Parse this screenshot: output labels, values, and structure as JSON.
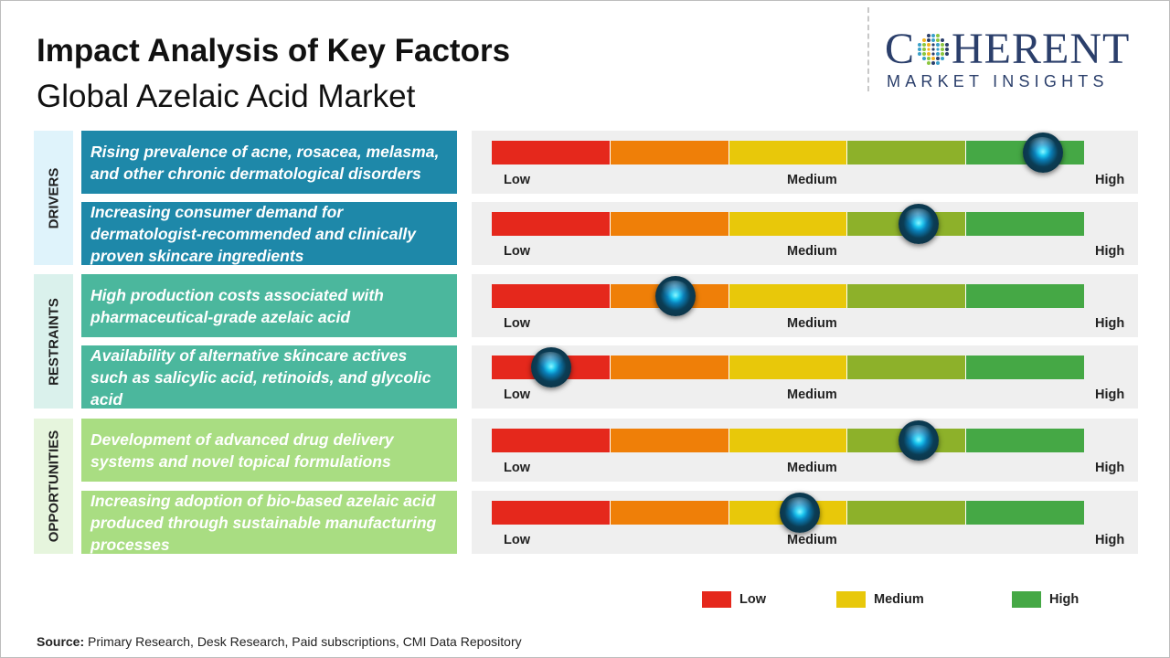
{
  "title": "Impact Analysis of Key Factors",
  "subtitle": "Global Azelaic Acid Market",
  "logo": {
    "main_pre": "C",
    "main_post": "HERENT",
    "sub": "MARKET INSIGHTS"
  },
  "colors": {
    "low": "#e5281c",
    "low_mid": "#ef7f08",
    "medium": "#e8c80a",
    "mid_high": "#8db12a",
    "high": "#45a845",
    "drivers_bg": "#dff3fb",
    "restraints_bg": "#daf1ec",
    "opportunities_bg": "#e6f5dd",
    "drivers_box": "#1e88a9",
    "restraints_box": "#4bb79d",
    "opportunities_box": "#a9dd82"
  },
  "chart_data": {
    "type": "bar",
    "scale_labels": [
      "Low",
      "Medium",
      "High"
    ],
    "scale_range": [
      0,
      1
    ],
    "categories": [
      {
        "name": "DRIVERS",
        "factors": [
          {
            "text": "Rising prevalence of acne, rosacea, melasma, and other chronic dermatological disorders",
            "impact": 0.93
          },
          {
            "text": "Increasing consumer demand for dermatologist-recommended and clinically proven skincare ingredients",
            "impact": 0.72
          }
        ]
      },
      {
        "name": "RESTRAINTS",
        "factors": [
          {
            "text": "High production costs associated with pharmaceutical-grade azelaic acid",
            "impact": 0.31
          },
          {
            "text": "Availability of alternative skincare actives such as salicylic acid, retinoids, and glycolic acid",
            "impact": 0.1
          }
        ]
      },
      {
        "name": "OPPORTUNITIES",
        "factors": [
          {
            "text": "Development of advanced drug delivery systems and novel topical formulations",
            "impact": 0.72
          },
          {
            "text": "Increasing adoption of bio-based azelaic acid produced through sustainable manufacturing processes",
            "impact": 0.52
          }
        ]
      }
    ],
    "legend": [
      "Low",
      "Medium",
      "High"
    ]
  },
  "source": {
    "label": "Source:",
    "text": " Primary Research, Desk Research, Paid subscriptions, CMI Data Repository"
  }
}
